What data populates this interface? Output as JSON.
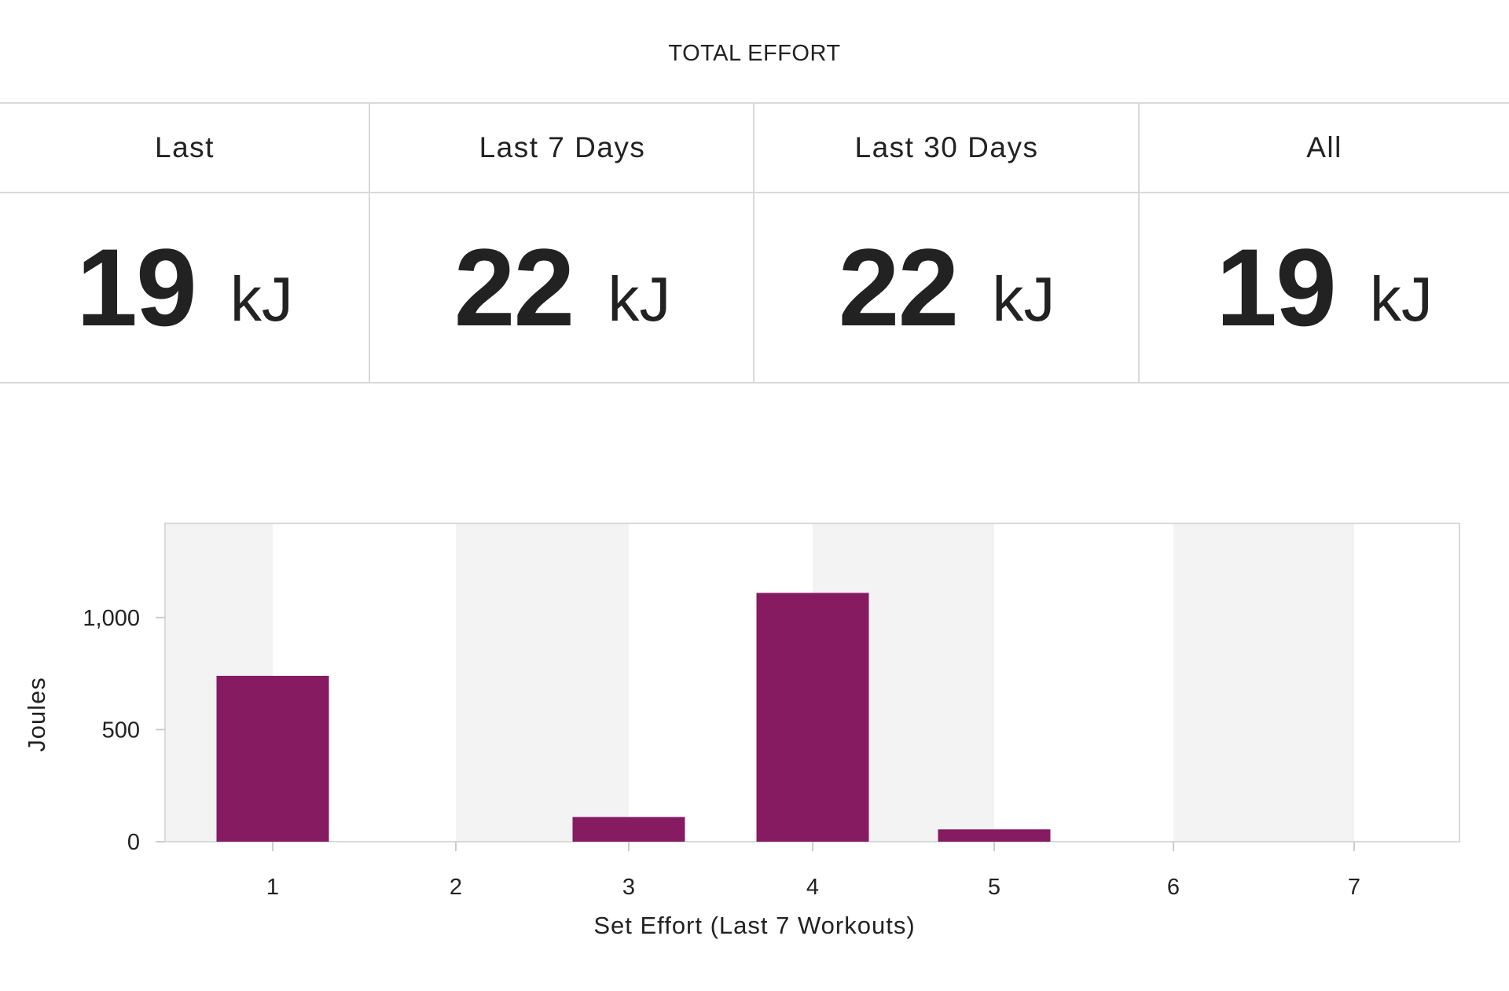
{
  "header": {
    "title": "TOTAL EFFORT"
  },
  "stats": [
    {
      "label": "Last",
      "value": "19",
      "unit": "kJ"
    },
    {
      "label": "Last 7 Days",
      "value": "22",
      "unit": "kJ"
    },
    {
      "label": "Last 30 Days",
      "value": "22",
      "unit": "kJ"
    },
    {
      "label": "All",
      "value": "19",
      "unit": "kJ"
    }
  ],
  "chart_data": {
    "type": "bar",
    "categories": [
      "1",
      "2",
      "3",
      "4",
      "5",
      "6",
      "7"
    ],
    "values": [
      740,
      0,
      110,
      1110,
      55,
      0,
      0
    ],
    "title": "",
    "xlabel": "Set Effort (Last 7 Workouts)",
    "ylabel": "Joules",
    "ylim": [
      0,
      1420
    ],
    "yticks": [
      0,
      500,
      1000
    ],
    "ytick_labels": [
      "0",
      "500",
      "1,000"
    ],
    "grid": false,
    "bar_color": "#861b62",
    "band_color": "#f3f3f3"
  }
}
